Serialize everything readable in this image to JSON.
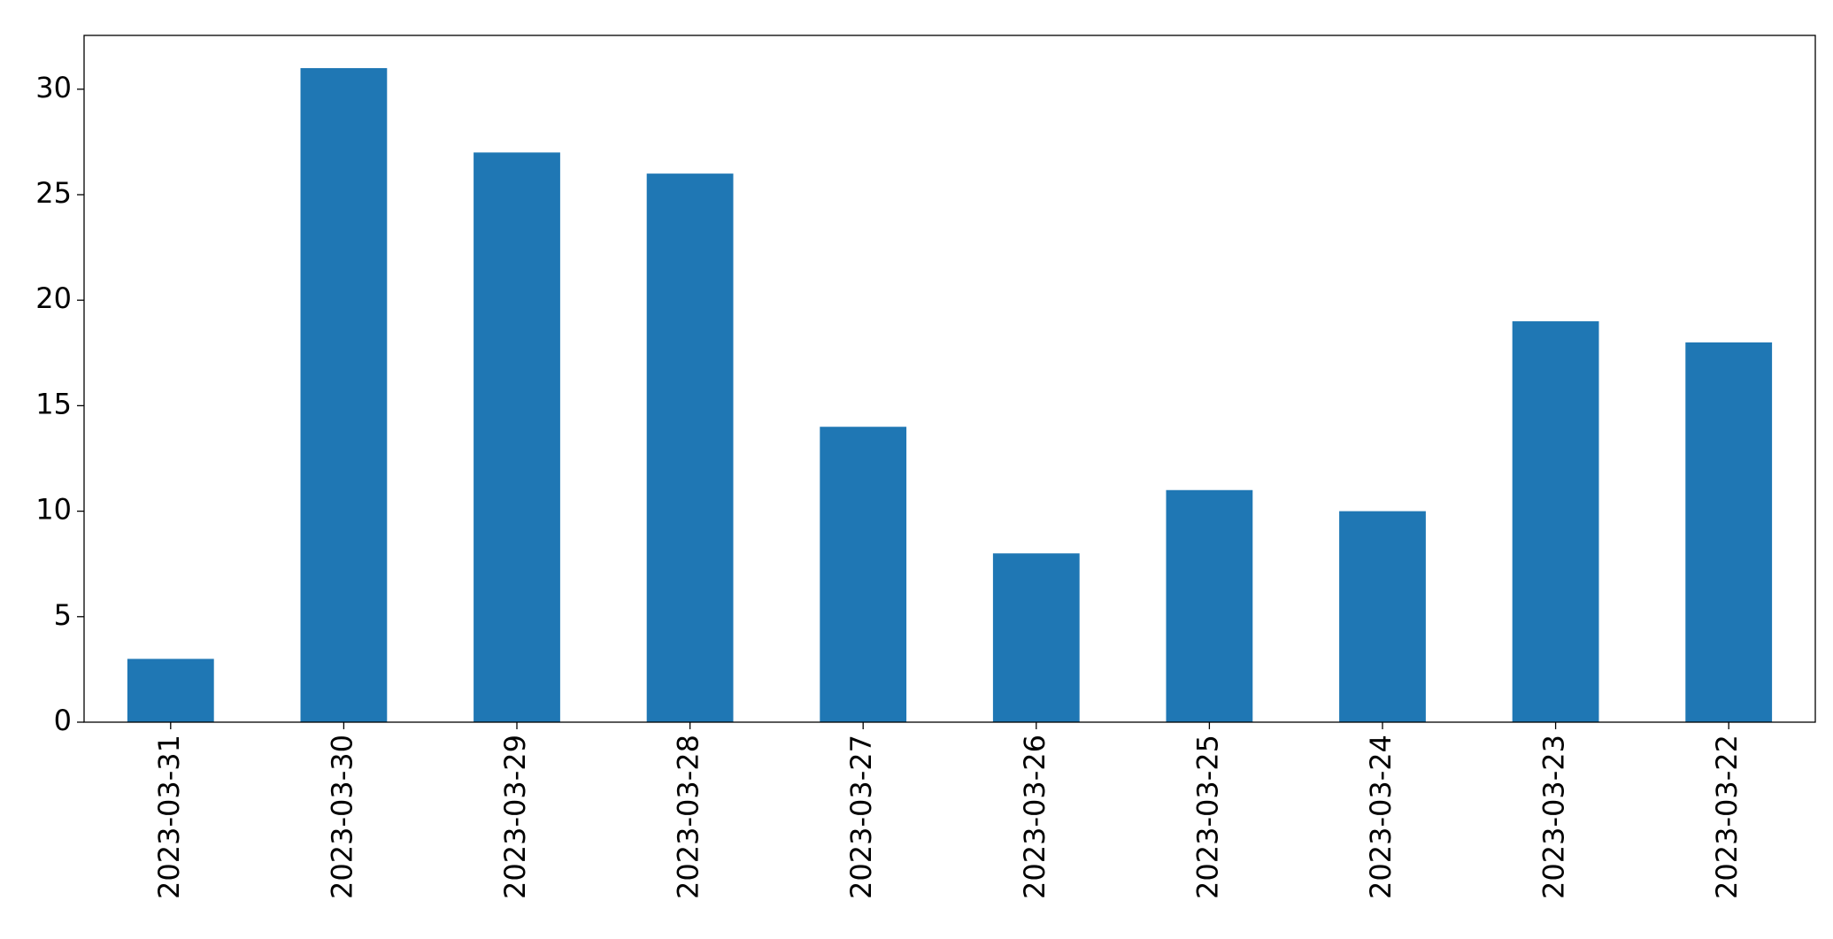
{
  "chart_data": {
    "type": "bar",
    "categories": [
      "2023-03-31",
      "2023-03-30",
      "2023-03-29",
      "2023-03-28",
      "2023-03-27",
      "2023-03-26",
      "2023-03-25",
      "2023-03-24",
      "2023-03-23",
      "2023-03-22"
    ],
    "values": [
      3,
      31,
      27,
      26,
      14,
      8,
      11,
      10,
      19,
      18
    ],
    "color": "#1f77b4",
    "ylim": [
      0,
      32.55
    ],
    "yticks": [
      0,
      5,
      10,
      15,
      20,
      25,
      30
    ],
    "grid": false
  }
}
